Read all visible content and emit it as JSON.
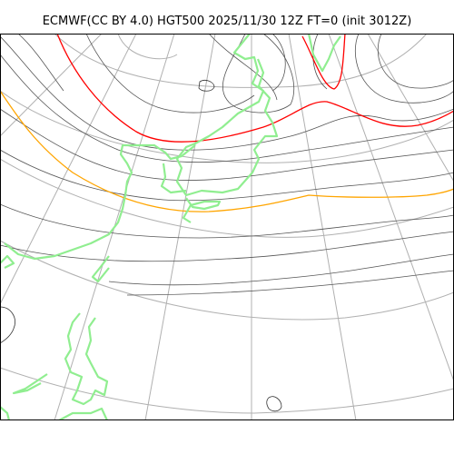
{
  "title": "ECMWF(CC BY 4.0) HGT500 2025/11/30 12Z FT=0 (init 3012Z)",
  "colors": {
    "background": "#ffffff",
    "frame": "#000000",
    "graticule": "#b0b0b0",
    "coastline": "#90ee90",
    "contour_default": "#555555",
    "contour_red": "#ff0000",
    "contour_orange": "#ffa500"
  }
}
